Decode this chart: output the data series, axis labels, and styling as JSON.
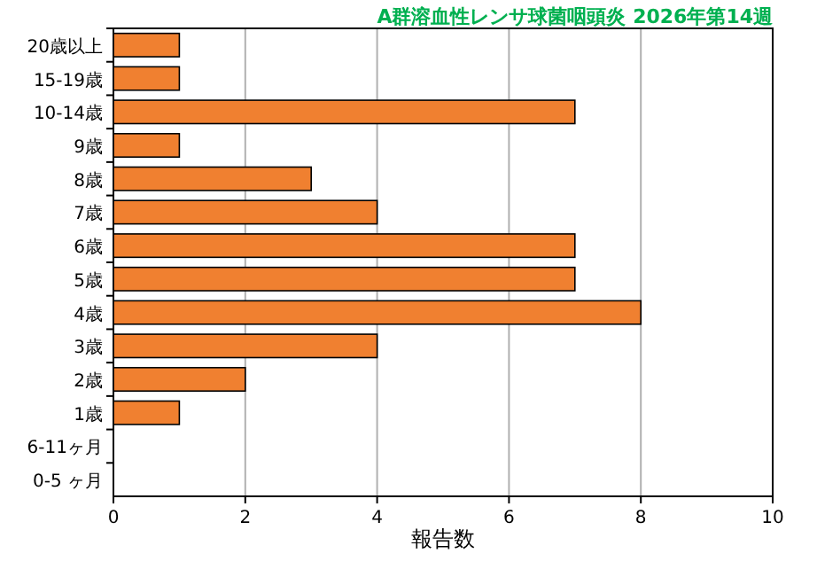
{
  "chart_data": {
    "type": "bar",
    "orientation": "horizontal",
    "title": "A群溶血性レンサ球菌咽頭炎 2026年第14週",
    "xlabel": "報告数",
    "categories": [
      "20歳以上",
      "15-19歳",
      "10-14歳",
      "9歳",
      "8歳",
      "7歳",
      "6歳",
      "5歳",
      "4歳",
      "3歳",
      "2歳",
      "1歳",
      "6-11ヶ月",
      "0-5 ヶ月"
    ],
    "values": [
      1,
      1,
      7,
      1,
      3,
      4,
      7,
      7,
      8,
      4,
      2,
      1,
      0,
      0
    ],
    "color": "#f08030",
    "xlim": [
      0,
      10
    ],
    "xticks": [
      0,
      2,
      4,
      6,
      8,
      10
    ],
    "grid": "x"
  }
}
